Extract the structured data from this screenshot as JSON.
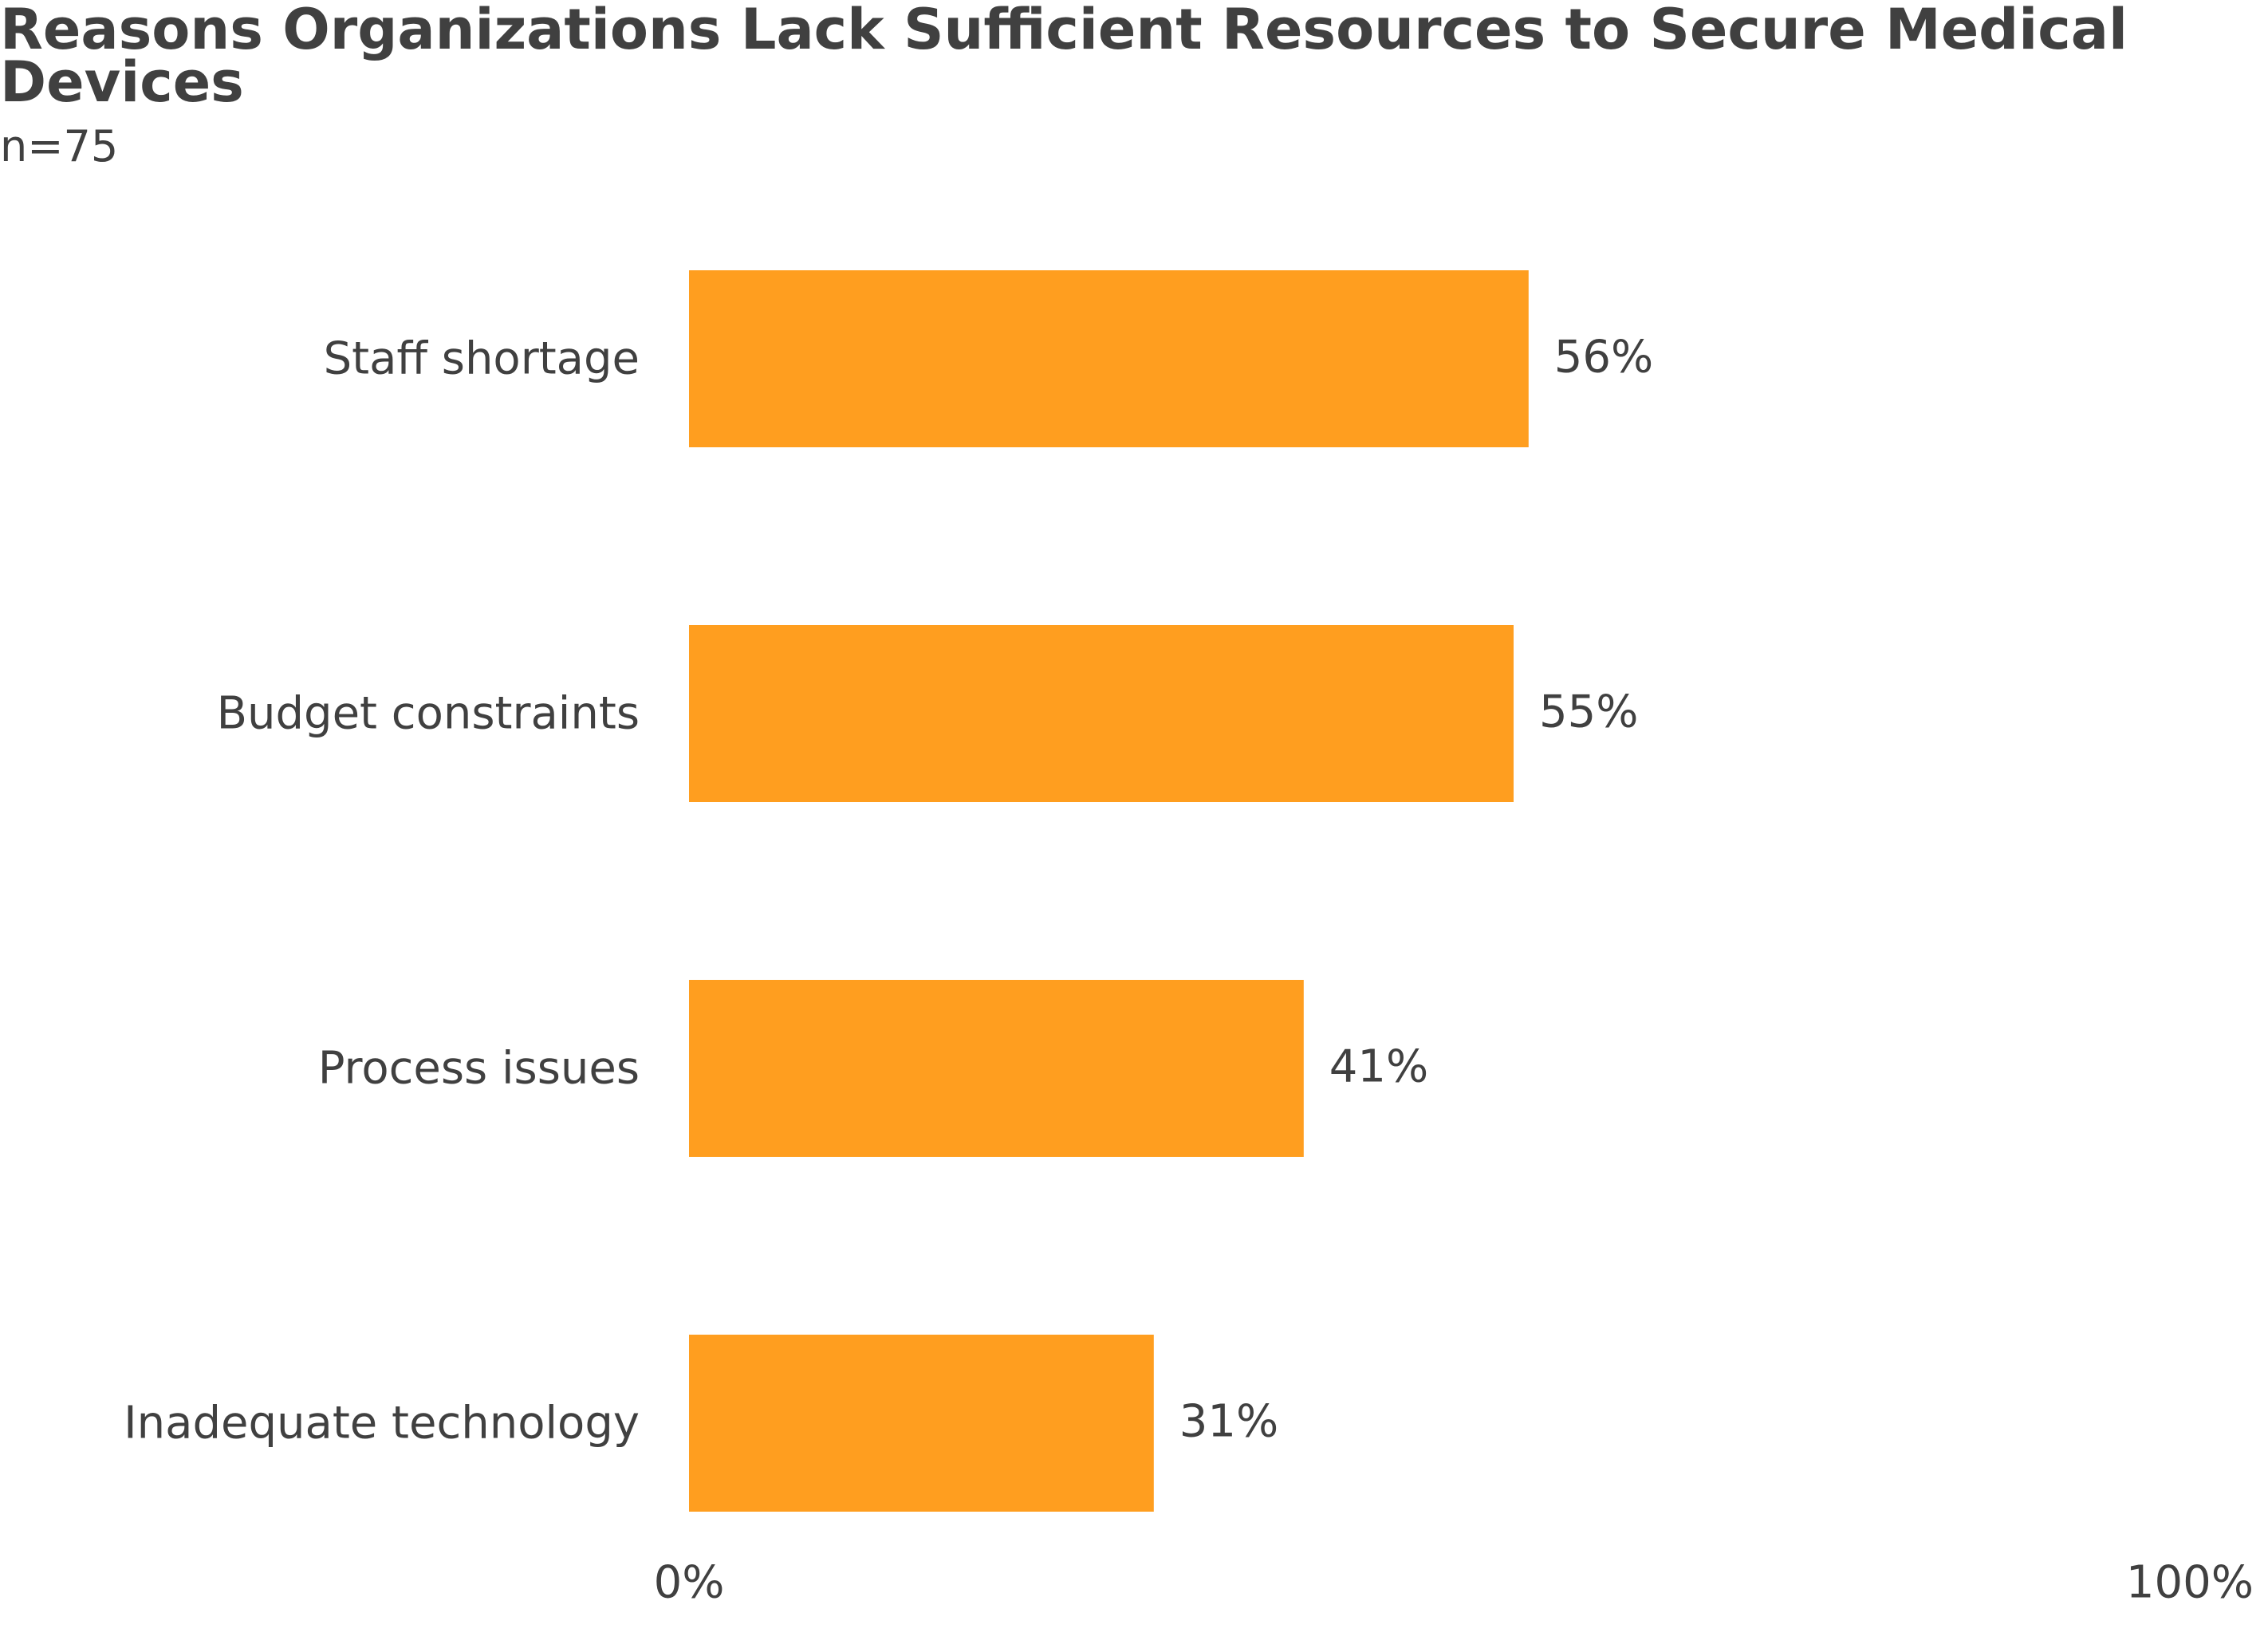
{
  "chart_data": {
    "type": "bar",
    "orientation": "horizontal",
    "title": "Reasons Organizations Lack Sufficient Resources to Secure Medical Devices",
    "subtitle": "n=75",
    "categories": [
      "Staff shortage",
      "Budget constraints",
      "Process issues",
      "Inadequate technology"
    ],
    "values": [
      56,
      55,
      41,
      31
    ],
    "data_labels": [
      "56%",
      "55%",
      "41%",
      "31%"
    ],
    "x_ticks": [
      "0%",
      "100%"
    ],
    "xlim": [
      0,
      100
    ],
    "unit": "%",
    "grid": false,
    "legend": "none",
    "bar_color": "#FF9E1F",
    "text_color": "#404040"
  }
}
